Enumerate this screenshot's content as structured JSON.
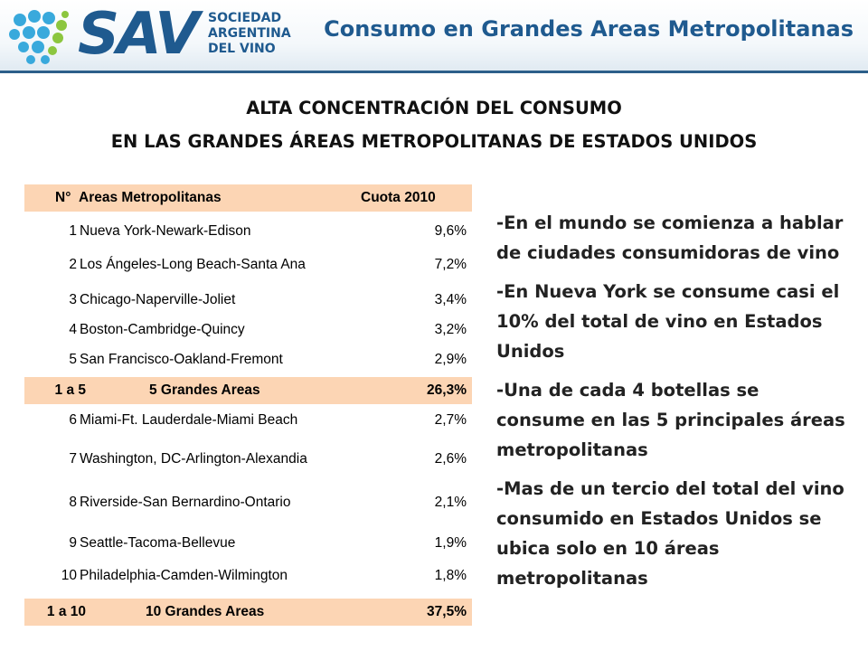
{
  "header": {
    "logo_sav": "SAV",
    "logo_lines": [
      "SOCIEDAD",
      "ARGENTINA",
      "DEL VINO"
    ],
    "title": "Consumo en Grandes Areas Metropolitanas",
    "accent_color": "#1f5a8f",
    "logo_dot_colors": [
      "#39a9dc",
      "#8cc63f"
    ]
  },
  "heading": {
    "line1": "ALTA CONCENTRACIÓN DEL CONSUMO",
    "line2": "EN LAS GRANDES ÁREAS METROPOLITANAS DE ESTADOS UNIDOS"
  },
  "table": {
    "header": {
      "num": "N°",
      "name": "Areas Metropolitanas",
      "value": "Cuota 2010"
    },
    "highlight_color": "#fcd5b4",
    "rows": [
      {
        "num": "1",
        "name": "Nueva York-Newark-Edison",
        "value": "9,6%"
      },
      {
        "num": "2",
        "name": "Los Ángeles-Long Beach-Santa Ana",
        "value": "7,2%"
      },
      {
        "num": "3",
        "name": "Chicago-Naperville-Joliet",
        "value": "3,4%"
      },
      {
        "num": "4",
        "name": "Boston-Cambridge-Quincy",
        "value": "3,2%"
      },
      {
        "num": "5",
        "name": "San Francisco-Oakland-Fremont",
        "value": "2,9%"
      },
      {
        "num": "1 a 5",
        "name": "5 Grandes Areas",
        "value": "26,3%"
      },
      {
        "num": "6",
        "name": "Miami-Ft. Lauderdale-Miami Beach",
        "value": "2,7%"
      },
      {
        "num": "7",
        "name": "Washington, DC-Arlington-Alexandia",
        "value": "2,6%"
      },
      {
        "num": "8",
        "name": "Riverside-San Bernardino-Ontario",
        "value": "2,1%"
      },
      {
        "num": "9",
        "name": "Seattle-Tacoma-Bellevue",
        "value": "1,9%"
      },
      {
        "num": "10",
        "name": "Philadelphia-Camden-Wilmington",
        "value": "1,8%"
      },
      {
        "num": "1 a 10",
        "name": "10 Grandes Areas",
        "value": "37,5%"
      }
    ]
  },
  "bullets": [
    "-En el mundo se comienza a hablar de ciudades consumidoras de vino",
    "-En Nueva York se consume casi el 10% del total de vino en Estados Unidos",
    "-Una de cada 4 botellas se consume en las 5 principales áreas metropolitanas",
    "-Mas de un tercio del total del vino consumido en Estados Unidos se ubica solo en 10 áreas metropolitanas"
  ]
}
